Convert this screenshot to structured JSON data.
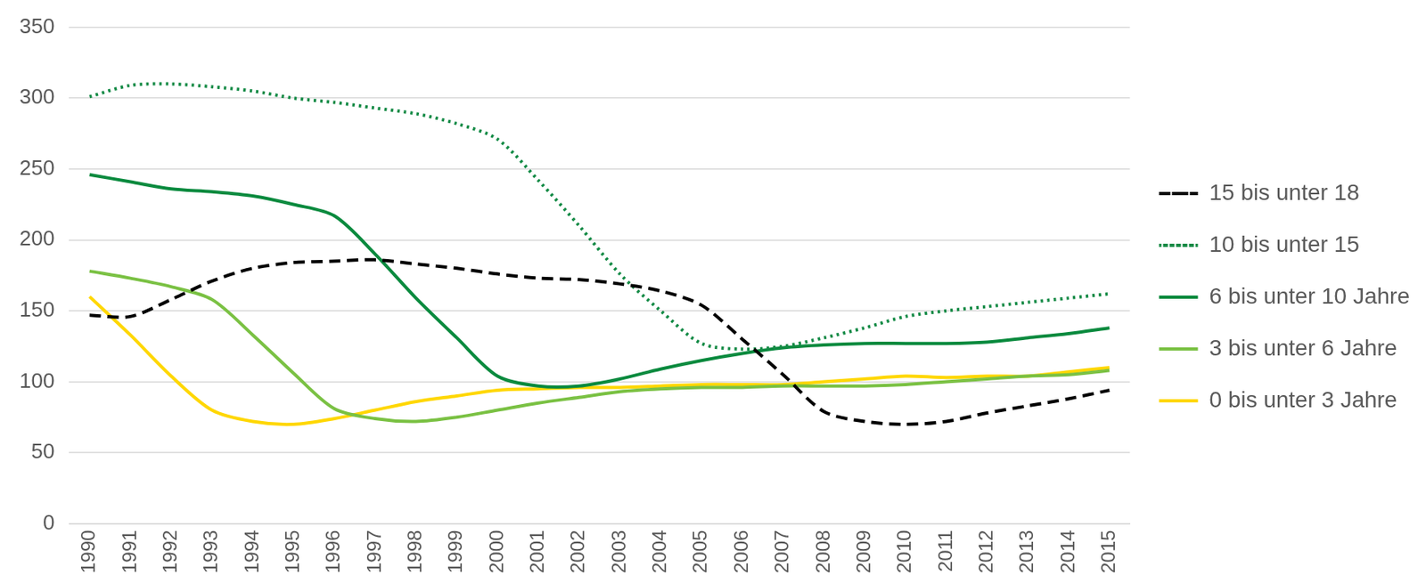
{
  "chart_data": {
    "type": "line",
    "categories": [
      "1990",
      "1991",
      "1992",
      "1993",
      "1994",
      "1995",
      "1996",
      "1997",
      "1998",
      "1999",
      "2000",
      "2001",
      "2002",
      "2003",
      "2004",
      "2005",
      "2006",
      "2007",
      "2008",
      "2009",
      "2010",
      "2011",
      "2012",
      "2013",
      "2014",
      "2015"
    ],
    "series": [
      {
        "name": "15 bis unter 18",
        "color": "#000000",
        "line_style": "dashed",
        "marker": "none",
        "values": [
          147,
          146,
          158,
          171,
          180,
          184,
          185,
          186,
          183,
          180,
          176,
          173,
          172,
          169,
          164,
          154,
          130,
          105,
          79,
          72,
          70,
          72,
          78,
          83,
          88,
          94
        ]
      },
      {
        "name": "10 bis unter 15",
        "color": "#138a45",
        "line_style": "dotted",
        "marker": "none",
        "values": [
          301,
          309,
          310,
          308,
          305,
          300,
          297,
          293,
          289,
          282,
          271,
          242,
          210,
          176,
          150,
          127,
          123,
          125,
          131,
          138,
          146,
          150,
          153,
          156,
          159,
          162
        ]
      },
      {
        "name": "6 bis unter 10 Jahre",
        "color": "#0a8a3e",
        "line_style": "solid",
        "marker": "none",
        "values": [
          246,
          241,
          236,
          234,
          231,
          225,
          217,
          190,
          159,
          131,
          104,
          97,
          97,
          102,
          109,
          115,
          120,
          124,
          126,
          127,
          127,
          127,
          128,
          131,
          134,
          138
        ]
      },
      {
        "name": "3 bis unter 6 Jahre",
        "color": "#7ac143",
        "line_style": "solid",
        "marker": "none",
        "values": [
          178,
          173,
          167,
          158,
          133,
          106,
          81,
          74,
          72,
          75,
          80,
          85,
          89,
          93,
          95,
          96,
          96,
          97,
          97,
          97,
          98,
          100,
          102,
          104,
          105,
          108
        ]
      },
      {
        "name": "0 bis unter 3 Jahre",
        "color": "#ffd700",
        "line_style": "solid",
        "marker": "none",
        "values": [
          160,
          133,
          104,
          80,
          72,
          70,
          74,
          80,
          86,
          90,
          94,
          95,
          96,
          96,
          97,
          98,
          98,
          98,
          100,
          102,
          104,
          103,
          104,
          104,
          107,
          110
        ]
      }
    ],
    "ylim": [
      0,
      350
    ],
    "yticks": [
      0,
      50,
      100,
      150,
      200,
      250,
      300,
      350
    ],
    "grid": true,
    "legend": "right"
  }
}
